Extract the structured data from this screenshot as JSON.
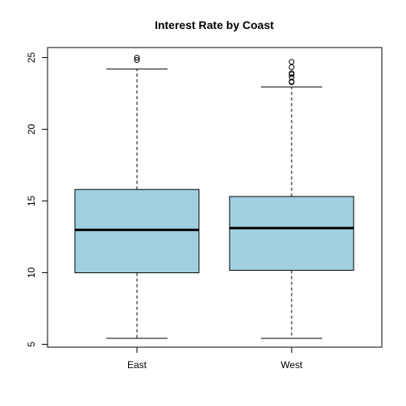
{
  "chart_data": {
    "type": "box",
    "title": "Interest Rate by Coast",
    "xlabel": "",
    "ylabel": "",
    "ylim": [
      4.8,
      25.7
    ],
    "yticks": [
      "5",
      "10",
      "15",
      "20",
      "25"
    ],
    "categories": [
      "East",
      "West"
    ],
    "boxes": [
      {
        "name": "East",
        "whisker_low": 5.42,
        "q1": 9.99,
        "median": 12.98,
        "q3": 15.8,
        "whisker_high": 24.2,
        "outliers": [
          24.83,
          24.99
        ]
      },
      {
        "name": "West",
        "whisker_low": 5.42,
        "q1": 10.16,
        "median": 13.11,
        "q3": 15.31,
        "whisker_high": 22.95,
        "outliers": [
          23.28,
          23.33,
          23.63,
          23.83,
          23.91,
          24.33,
          24.7
        ]
      }
    ],
    "colors": {
      "box_fill": "#a0d0e0",
      "stroke": "#000000"
    },
    "grid": false
  }
}
